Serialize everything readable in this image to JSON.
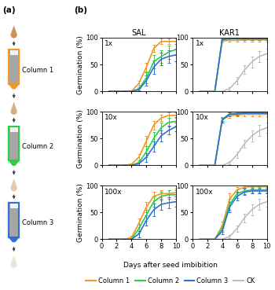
{
  "panel_a": {
    "label": "(a)",
    "columns": [
      {
        "name": "Column 1",
        "color": "#f0962a"
      },
      {
        "name": "Column 2",
        "color": "#2ecc40"
      },
      {
        "name": "Column 3",
        "color": "#2f6fd6"
      }
    ]
  },
  "panel_b": {
    "label": "(b)",
    "column_titles": [
      "SAL",
      "KAR1"
    ],
    "xlabel": "Days after seed imbibition",
    "legend": "lower center"
  },
  "chart_data": [
    {
      "type": "line",
      "annotations": [
        "1x"
      ],
      "ylabel": "Germination (%)",
      "tick_labels": "y",
      "x": [
        1,
        2,
        3,
        4,
        5,
        6,
        7,
        8,
        9,
        10
      ],
      "xlim": [
        0,
        10
      ],
      "ylim": [
        0,
        100
      ],
      "xticks": [
        0,
        2,
        4,
        6,
        8,
        10
      ],
      "yticks": [
        0,
        50,
        100
      ],
      "series": [
        {
          "name": "Column 1",
          "color": "#f0962a",
          "values": [
            0,
            0,
            0,
            0,
            15,
            45,
            80,
            93,
            93,
            93
          ],
          "errors": [
            0,
            0,
            0,
            0,
            5,
            8,
            7,
            5,
            5,
            5
          ]
        },
        {
          "name": "Column 2",
          "color": "#2ecc40",
          "values": [
            0,
            0,
            0,
            0,
            5,
            25,
            55,
            65,
            73,
            78
          ],
          "errors": [
            0,
            0,
            0,
            0,
            3,
            10,
            12,
            12,
            12,
            10
          ]
        },
        {
          "name": "Column 3",
          "color": "#2f6fd6",
          "values": [
            0,
            0,
            0,
            0,
            3,
            20,
            45,
            60,
            65,
            68
          ],
          "errors": [
            0,
            0,
            0,
            0,
            3,
            10,
            12,
            12,
            12,
            12
          ]
        }
      ]
    },
    {
      "type": "line",
      "annotations": [
        "1x"
      ],
      "tick_labels": "y",
      "x": [
        1,
        2,
        3,
        4,
        5,
        6,
        7,
        8,
        9,
        10
      ],
      "xlim": [
        0,
        10
      ],
      "ylim": [
        0,
        100
      ],
      "xticks": [
        0,
        2,
        4,
        6,
        8,
        10
      ],
      "yticks": [
        0,
        50,
        100
      ],
      "series": [
        {
          "name": "Column 1",
          "color": "#f0962a",
          "values": [
            0,
            0,
            0,
            94,
            95,
            95,
            96,
            96,
            96,
            96
          ],
          "errors": [
            0,
            0,
            0,
            3,
            3,
            3,
            3,
            3,
            3,
            3
          ]
        },
        {
          "name": "Column 2",
          "color": "#2ecc40",
          "values": [
            0,
            0,
            0,
            96,
            98,
            98,
            98,
            98,
            98,
            98
          ],
          "errors": [
            0,
            0,
            0,
            2,
            2,
            2,
            2,
            2,
            2,
            2
          ]
        },
        {
          "name": "Column 3",
          "color": "#2f6fd6",
          "values": [
            0,
            0,
            0,
            97,
            98,
            98,
            98,
            98,
            98,
            98
          ],
          "errors": [
            0,
            0,
            0,
            2,
            2,
            2,
            2,
            2,
            2,
            2
          ]
        },
        {
          "name": "CK",
          "color": "#bdbdbd",
          "values": [
            0,
            0,
            0,
            0,
            5,
            20,
            40,
            55,
            65,
            70
          ],
          "errors": [
            0,
            0,
            0,
            0,
            3,
            6,
            8,
            10,
            10,
            10
          ]
        }
      ]
    },
    {
      "type": "line",
      "annotations": [
        "10x"
      ],
      "ylabel": "Germination (%)",
      "tick_labels": "y",
      "x": [
        1,
        2,
        3,
        4,
        5,
        6,
        7,
        8,
        9,
        10
      ],
      "xlim": [
        0,
        10
      ],
      "ylim": [
        0,
        100
      ],
      "xticks": [
        0,
        2,
        4,
        6,
        8,
        10
      ],
      "yticks": [
        0,
        50,
        100
      ],
      "series": [
        {
          "name": "Column 1",
          "color": "#f0962a",
          "values": [
            0,
            0,
            0,
            2,
            15,
            45,
            75,
            88,
            93,
            93
          ],
          "errors": [
            0,
            0,
            0,
            2,
            6,
            10,
            8,
            6,
            5,
            5
          ]
        },
        {
          "name": "Column 2",
          "color": "#2ecc40",
          "values": [
            0,
            0,
            0,
            0,
            5,
            25,
            50,
            70,
            80,
            82
          ],
          "errors": [
            0,
            0,
            0,
            0,
            4,
            10,
            12,
            10,
            8,
            8
          ]
        },
        {
          "name": "Column 3",
          "color": "#2f6fd6",
          "values": [
            0,
            0,
            0,
            0,
            3,
            15,
            35,
            55,
            65,
            72
          ],
          "errors": [
            0,
            0,
            0,
            0,
            3,
            8,
            10,
            10,
            8,
            8
          ]
        }
      ]
    },
    {
      "type": "line",
      "annotations": [
        "10x"
      ],
      "tick_labels": "y",
      "x": [
        1,
        2,
        3,
        4,
        5,
        6,
        7,
        8,
        9,
        10
      ],
      "xlim": [
        0,
        10
      ],
      "ylim": [
        0,
        100
      ],
      "xticks": [
        0,
        2,
        4,
        6,
        8,
        10
      ],
      "yticks": [
        0,
        50,
        100
      ],
      "series": [
        {
          "name": "Column 1",
          "color": "#f0962a",
          "values": [
            0,
            0,
            0,
            86,
            92,
            94,
            95,
            95,
            95,
            95
          ],
          "errors": [
            0,
            0,
            0,
            4,
            4,
            3,
            3,
            3,
            3,
            3
          ]
        },
        {
          "name": "Column 2",
          "color": "#2ecc40",
          "values": [
            0,
            0,
            0,
            86,
            96,
            97,
            98,
            98,
            98,
            98
          ],
          "errors": [
            0,
            0,
            0,
            4,
            3,
            2,
            2,
            2,
            2,
            2
          ]
        },
        {
          "name": "Column 3",
          "color": "#2f6fd6",
          "values": [
            0,
            0,
            0,
            84,
            95,
            96,
            97,
            97,
            97,
            97
          ],
          "errors": [
            0,
            0,
            0,
            4,
            3,
            3,
            2,
            2,
            2,
            2
          ]
        },
        {
          "name": "CK",
          "color": "#bdbdbd",
          "values": [
            0,
            0,
            0,
            0,
            5,
            20,
            40,
            55,
            65,
            70
          ],
          "errors": [
            0,
            0,
            0,
            0,
            3,
            6,
            8,
            10,
            10,
            10
          ]
        }
      ]
    },
    {
      "type": "line",
      "annotations": [
        "100x"
      ],
      "ylabel": "Germination (%)",
      "tick_labels": true,
      "x": [
        1,
        2,
        3,
        4,
        5,
        6,
        7,
        8,
        9,
        10
      ],
      "xlim": [
        0,
        10
      ],
      "ylim": [
        0,
        100
      ],
      "xticks": [
        0,
        2,
        4,
        6,
        8,
        10
      ],
      "yticks": [
        0,
        50,
        100
      ],
      "series": [
        {
          "name": "Column 1",
          "color": "#f0962a",
          "values": [
            0,
            0,
            0,
            3,
            30,
            60,
            80,
            85,
            85,
            87
          ],
          "errors": [
            0,
            0,
            0,
            3,
            8,
            10,
            8,
            7,
            7,
            7
          ]
        },
        {
          "name": "Column 2",
          "color": "#2ecc40",
          "values": [
            0,
            0,
            0,
            0,
            20,
            45,
            70,
            80,
            83,
            83
          ],
          "errors": [
            0,
            0,
            0,
            0,
            8,
            10,
            10,
            8,
            8,
            8
          ]
        },
        {
          "name": "Column 3",
          "color": "#2f6fd6",
          "values": [
            0,
            0,
            0,
            0,
            10,
            35,
            55,
            65,
            68,
            70
          ],
          "errors": [
            0,
            0,
            0,
            0,
            6,
            10,
            12,
            10,
            10,
            10
          ]
        }
      ]
    },
    {
      "type": "line",
      "annotations": [
        "100x"
      ],
      "tick_labels": true,
      "x": [
        1,
        2,
        3,
        4,
        5,
        6,
        7,
        8,
        9,
        10
      ],
      "xlim": [
        0,
        10
      ],
      "ylim": [
        0,
        100
      ],
      "xticks": [
        0,
        2,
        4,
        6,
        8,
        10
      ],
      "yticks": [
        0,
        50,
        100
      ],
      "series": [
        {
          "name": "Column 1",
          "color": "#f0962a",
          "values": [
            0,
            0,
            0,
            25,
            75,
            92,
            97,
            98,
            98,
            98
          ],
          "errors": [
            0,
            0,
            0,
            8,
            10,
            5,
            3,
            2,
            2,
            2
          ]
        },
        {
          "name": "Column 2",
          "color": "#2ecc40",
          "values": [
            0,
            0,
            0,
            20,
            65,
            85,
            90,
            92,
            92,
            92
          ],
          "errors": [
            0,
            0,
            0,
            6,
            10,
            8,
            6,
            5,
            5,
            5
          ]
        },
        {
          "name": "Column 3",
          "color": "#2f6fd6",
          "values": [
            0,
            0,
            0,
            15,
            60,
            80,
            88,
            90,
            90,
            90
          ],
          "errors": [
            0,
            0,
            0,
            6,
            10,
            8,
            6,
            5,
            5,
            5
          ]
        },
        {
          "name": "CK",
          "color": "#bdbdbd",
          "values": [
            0,
            0,
            0,
            0,
            5,
            20,
            40,
            55,
            65,
            70
          ],
          "errors": [
            0,
            0,
            0,
            0,
            3,
            6,
            8,
            10,
            10,
            10
          ]
        }
      ]
    }
  ]
}
